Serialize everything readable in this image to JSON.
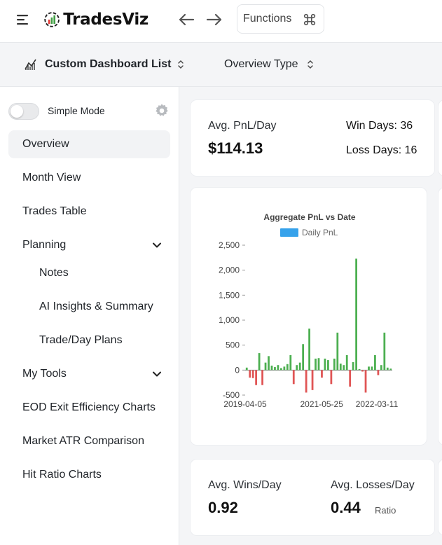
{
  "topbar": {
    "logo_text": "TradesViz",
    "functions_label": "Functions"
  },
  "subheader": {
    "dashboard_list_label": "Custom Dashboard List",
    "overview_type_label": "Overview Type"
  },
  "sidebar": {
    "simple_mode_label": "Simple Mode",
    "items": [
      {
        "label": "Overview",
        "active": true
      },
      {
        "label": "Month View"
      },
      {
        "label": "Trades Table"
      },
      {
        "label": "Planning",
        "expandable": true
      },
      {
        "label": "Notes",
        "sub": true
      },
      {
        "label": "AI Insights & Summary",
        "sub": true
      },
      {
        "label": "Trade/Day Plans",
        "sub": true
      },
      {
        "label": "My Tools",
        "expandable": true
      },
      {
        "label": "EOD Exit Efficiency Charts"
      },
      {
        "label": "Market ATR Comparison"
      },
      {
        "label": "Hit Ratio Charts"
      }
    ]
  },
  "stats_top": {
    "avg_pnl_label": "Avg. PnL/Day",
    "avg_pnl_value": "$114.13",
    "win_days": "Win Days: 36",
    "loss_days": "Loss Days: 16"
  },
  "stats_bottom": {
    "avg_wins_label": "Avg. Wins/Day",
    "avg_wins_value": "0.92",
    "avg_losses_label": "Avg. Losses/Day",
    "avg_losses_value": "0.44",
    "ratio_label": "Ratio"
  },
  "colors": {
    "positive": "#4caf50",
    "negative": "#e05555",
    "legend": "#36a2eb"
  },
  "chart_data": {
    "type": "bar",
    "title": "Aggregate PnL vs Date",
    "legend": [
      "Daily PnL"
    ],
    "x_tick_labels": [
      "2019-04-05",
      "2021-05-25",
      "2022-03-11"
    ],
    "y_ticks": [
      2500,
      2000,
      1500,
      1000,
      500,
      0,
      -500
    ],
    "y_tick_labels": [
      "2,500",
      "2,000",
      "1,500",
      "1,000",
      "500",
      "0",
      "-500"
    ],
    "ylim": [
      -500,
      2500
    ],
    "series": [
      {
        "name": "Daily PnL",
        "values": [
          50,
          -150,
          -160,
          -300,
          340,
          -300,
          150,
          280,
          90,
          60,
          100,
          40,
          70,
          120,
          300,
          -280,
          100,
          150,
          520,
          -450,
          830,
          -400,
          230,
          240,
          -150,
          230,
          200,
          -280,
          230,
          750,
          130,
          100,
          300,
          -330,
          160,
          2230,
          20,
          -30,
          -450,
          70,
          70,
          300,
          -100,
          100,
          750,
          50,
          30
        ]
      }
    ]
  }
}
